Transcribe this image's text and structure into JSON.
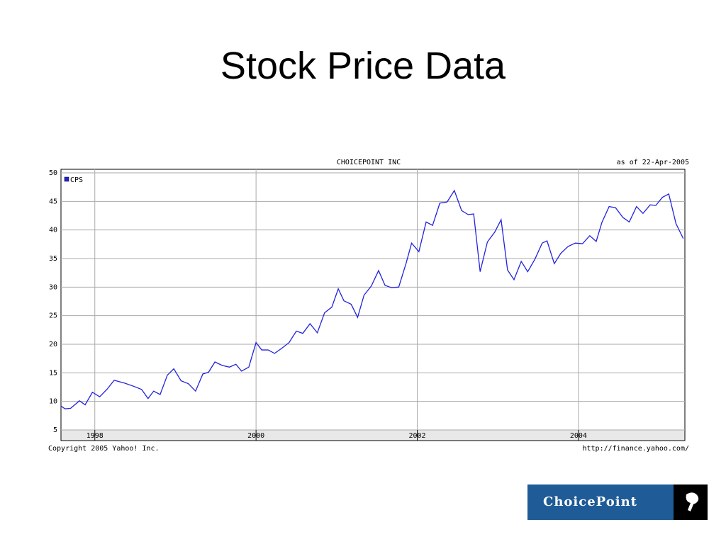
{
  "slide_title": "Stock Price Data",
  "logo": "ChoicePoint",
  "chart_data": {
    "type": "line",
    "title": "CHOICEPOINT INC",
    "subtitle": "as of 22-Apr-2005",
    "footer_left": "Copyright 2005 Yahoo! Inc.",
    "footer_right": "http://finance.yahoo.com/",
    "x": [
      1997.58,
      1997.63,
      1997.7,
      1997.81,
      1997.88,
      1997.97,
      1998.06,
      1998.15,
      1998.24,
      1998.37,
      1998.49,
      1998.58,
      1998.66,
      1998.73,
      1998.81,
      1998.9,
      1998.98,
      1999.07,
      1999.16,
      1999.25,
      1999.34,
      1999.41,
      1999.49,
      1999.58,
      1999.67,
      1999.75,
      1999.82,
      1999.91,
      2000.0,
      2000.07,
      2000.15,
      2000.23,
      2000.32,
      2000.41,
      2000.5,
      2000.58,
      2000.67,
      2000.76,
      2000.85,
      2000.94,
      2001.02,
      2001.09,
      2001.18,
      2001.26,
      2001.34,
      2001.43,
      2001.52,
      2001.6,
      2001.68,
      2001.77,
      2001.86,
      2001.93,
      2002.02,
      2002.11,
      2002.19,
      2002.28,
      2002.37,
      2002.46,
      2002.55,
      2002.63,
      2002.7,
      2002.78,
      2002.87,
      2002.96,
      2003.04,
      2003.12,
      2003.2,
      2003.29,
      2003.37,
      2003.46,
      2003.55,
      2003.61,
      2003.7,
      2003.78,
      2003.87,
      2003.96,
      2004.05,
      2004.14,
      2004.22,
      2004.29,
      2004.38,
      2004.46,
      2004.55,
      2004.63,
      2004.72,
      2004.8,
      2004.89,
      2004.96,
      2005.04,
      2005.12,
      2005.21,
      2005.3
    ],
    "series": [
      {
        "name": "CPS",
        "color": "#2222dd",
        "values": [
          9.2,
          8.7,
          8.8,
          10.1,
          9.4,
          11.6,
          10.8,
          12.1,
          13.7,
          13.2,
          12.6,
          12.1,
          10.5,
          11.8,
          11.2,
          14.6,
          15.7,
          13.6,
          13.1,
          11.8,
          14.8,
          15.1,
          16.9,
          16.3,
          16.0,
          16.5,
          15.3,
          16.0,
          20.3,
          19.0,
          19.0,
          18.4,
          19.3,
          20.3,
          22.3,
          21.9,
          23.6,
          22.0,
          25.5,
          26.5,
          29.7,
          27.6,
          27.0,
          24.7,
          28.6,
          30.2,
          32.9,
          30.3,
          29.9,
          30.0,
          34.1,
          37.7,
          36.2,
          41.4,
          40.8,
          44.7,
          44.9,
          46.9,
          43.4,
          42.7,
          42.8,
          32.7,
          37.9,
          39.6,
          41.8,
          33.0,
          31.3,
          34.5,
          32.7,
          34.9,
          37.7,
          38.1,
          34.1,
          35.9,
          37.1,
          37.7,
          37.6,
          39.0,
          38.0,
          41.3,
          44.1,
          43.9,
          42.2,
          41.4,
          44.1,
          42.9,
          44.4,
          44.3,
          45.7,
          46.3,
          41.1,
          38.5
        ]
      }
    ],
    "xlim": [
      1997.58,
      2005.32
    ],
    "xticks": [
      1998,
      2000,
      2002,
      2004
    ],
    "ylim": [
      5,
      50
    ],
    "yticks": [
      5,
      10,
      15,
      20,
      25,
      30,
      35,
      40,
      45,
      50
    ],
    "grid": true,
    "legend": "top-left"
  }
}
